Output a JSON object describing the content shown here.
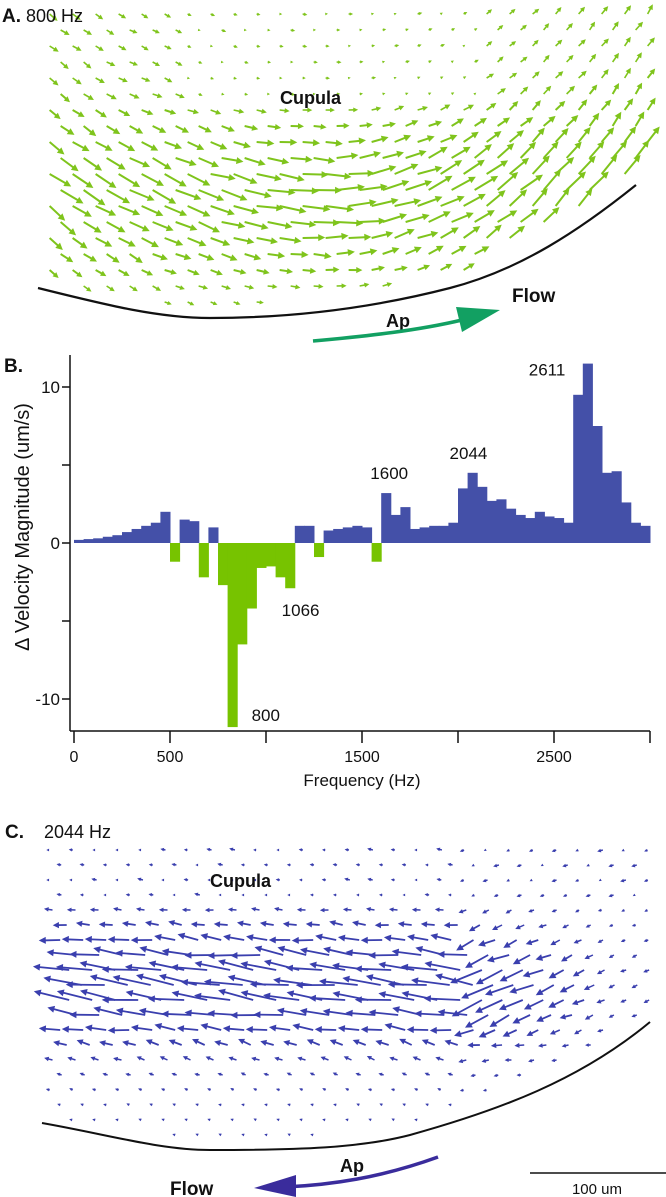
{
  "panel_a": {
    "letter": "A.",
    "frequency": "800 Hz",
    "cupula_label": "Cupula",
    "ap_label": "Ap",
    "flow_label": "Flow",
    "arrow_color": "#7fc41c",
    "flow_arrow_color": "#12a062"
  },
  "panel_c": {
    "letter": "C.",
    "frequency": "2044 Hz",
    "cupula_label": "Cupula",
    "ap_label": "Ap",
    "flow_label": "Flow",
    "arrow_color": "#3a3fae",
    "flow_arrow_color": "#3a2c9c",
    "scale_bar_label": "100 um"
  },
  "chart_data": {
    "panel_letter": "B.",
    "type": "bar",
    "xlabel": "Frequency (Hz)",
    "ylabel": "Δ Velocity Magnitude (um/s)",
    "xlim": [
      0,
      3000
    ],
    "ylim": [
      -12,
      12
    ],
    "x_ticks": [
      0,
      500,
      1000,
      1500,
      2000,
      2500,
      3000
    ],
    "x_tick_labels": [
      "0",
      "500",
      "",
      "1500",
      "",
      "2500",
      ""
    ],
    "y_ticks": [
      -10,
      -5,
      0,
      5,
      10
    ],
    "y_tick_labels": [
      "-10",
      "",
      "0",
      "",
      "10"
    ],
    "grid": false,
    "bin_width_hz": 50,
    "positive_color": "#4450a8",
    "negative_color": "#77c300",
    "x": [
      0,
      50,
      100,
      150,
      200,
      250,
      300,
      350,
      400,
      450,
      500,
      550,
      600,
      650,
      700,
      750,
      800,
      850,
      900,
      950,
      1000,
      1050,
      1100,
      1150,
      1200,
      1250,
      1300,
      1350,
      1400,
      1450,
      1500,
      1550,
      1600,
      1650,
      1700,
      1750,
      1800,
      1850,
      1900,
      1950,
      2000,
      2050,
      2100,
      2150,
      2200,
      2250,
      2300,
      2350,
      2400,
      2450,
      2500,
      2550,
      2600,
      2650,
      2700,
      2750,
      2800,
      2850,
      2900,
      2950
    ],
    "values": [
      0.2,
      0.25,
      0.3,
      0.4,
      0.5,
      0.7,
      0.9,
      1.1,
      1.3,
      2.0,
      -1.2,
      1.5,
      1.4,
      -2.2,
      1.0,
      -2.7,
      -11.8,
      -6.5,
      -4.2,
      -1.6,
      -1.5,
      -2.2,
      -2.9,
      1.1,
      1.1,
      -0.9,
      0.8,
      0.9,
      1.0,
      1.1,
      1.0,
      -1.2,
      3.2,
      1.8,
      2.3,
      0.9,
      1.0,
      1.1,
      1.1,
      1.3,
      3.5,
      4.5,
      3.6,
      2.7,
      2.8,
      2.2,
      1.8,
      1.6,
      2.0,
      1.7,
      1.6,
      1.3,
      9.5,
      11.5,
      7.5,
      4.5,
      4.6,
      2.6,
      1.3,
      1.1
    ],
    "annotations": [
      {
        "text": "800",
        "x": 800,
        "y": -11.8
      },
      {
        "text": "1066",
        "x": 1066,
        "y": -2.9
      },
      {
        "text": "1600",
        "x": 1600,
        "y": 3.2
      },
      {
        "text": "2044",
        "x": 2044,
        "y": 4.5
      },
      {
        "text": "2611",
        "x": 2611,
        "y": 11.5
      }
    ]
  }
}
